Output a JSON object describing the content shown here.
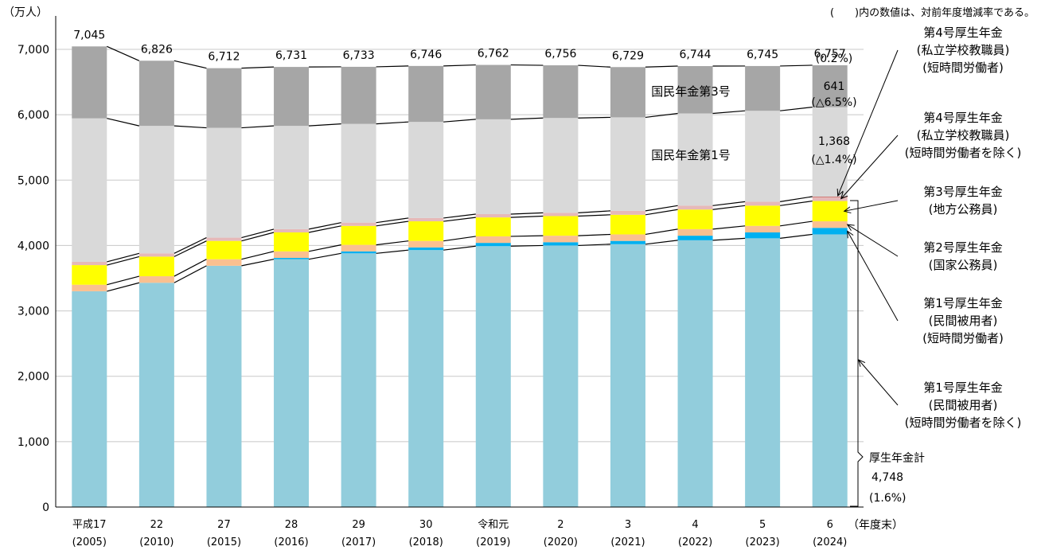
{
  "chart_data": {
    "type": "bar",
    "stacked": true,
    "title": "",
    "ylabel": "（万人）",
    "xlabel": "（年度末）",
    "note": "(　　)内の数値は、対前年度増減率である。",
    "ylim": [
      0,
      7000
    ],
    "yticks": [
      "0",
      "1,000",
      "2,000",
      "3,000",
      "4,000",
      "5,000",
      "6,000",
      "7,000"
    ],
    "categories": [
      {
        "top": "平成17",
        "bottom": "(2005)"
      },
      {
        "top": "22",
        "bottom": "(2010)"
      },
      {
        "top": "27",
        "bottom": "(2015)"
      },
      {
        "top": "28",
        "bottom": "(2016)"
      },
      {
        "top": "29",
        "bottom": "(2017)"
      },
      {
        "top": "30",
        "bottom": "(2018)"
      },
      {
        "top": "令和元",
        "bottom": "(2019)"
      },
      {
        "top": "2",
        "bottom": "(2020)"
      },
      {
        "top": "3",
        "bottom": "(2021)"
      },
      {
        "top": "4",
        "bottom": "(2022)"
      },
      {
        "top": "5",
        "bottom": "(2023)"
      },
      {
        "top": "6",
        "bottom": "(2024)"
      }
    ],
    "totals": [
      "7,045",
      "6,826",
      "6,712",
      "6,731",
      "6,733",
      "6,746",
      "6,762",
      "6,756",
      "6,729",
      "6,744",
      "6,745",
      "6,757"
    ],
    "series": [
      {
        "name": "第1号厚生年金 (民間被用者) (短時間労働者を除く)",
        "color": "#92CDDC",
        "values": [
          3300,
          3430,
          3690,
          3790,
          3880,
          3930,
          3990,
          4000,
          4020,
          4080,
          4110,
          4170
        ]
      },
      {
        "name": "第1号厚生年金 (民間被用者) (短時間労働者)",
        "color": "#00B0F0",
        "values": [
          0,
          0,
          0,
          20,
          30,
          40,
          50,
          50,
          50,
          70,
          90,
          100
        ]
      },
      {
        "name": "第2号厚生年金 (国家公務員)",
        "color": "#FAC090",
        "values": [
          100,
          100,
          100,
          100,
          100,
          100,
          100,
          100,
          100,
          100,
          100,
          100
        ]
      },
      {
        "name": "第3号厚生年金 (地方公務員)",
        "color": "#FFFF00",
        "values": [
          300,
          300,
          280,
          290,
          290,
          300,
          290,
          300,
          300,
          300,
          310,
          310
        ]
      },
      {
        "name": "第4号厚生年金 (私立学校教職員) (短時間労働者を除く)",
        "color": "#E6B9B8",
        "values": [
          50,
          50,
          50,
          50,
          50,
          50,
          50,
          50,
          60,
          60,
          60,
          60
        ]
      },
      {
        "name": "第4号厚生年金 (私立学校教職員) (短時間労働者)",
        "color": "#C0504D",
        "values": [
          0,
          0,
          0,
          0,
          0,
          0,
          0,
          0,
          0,
          0,
          0,
          8
        ]
      },
      {
        "name": "国民年金第1号",
        "color": "#D9D9D9",
        "values": [
          2195,
          1950,
          1680,
          1580,
          1510,
          1470,
          1450,
          1450,
          1430,
          1410,
          1390,
          1368
        ]
      },
      {
        "name": "国民年金第3号",
        "color": "#A6A6A6",
        "values": [
          1100,
          996,
          912,
          901,
          873,
          856,
          832,
          806,
          769,
          724,
          685,
          641
        ]
      }
    ],
    "inner_labels": {
      "nenkin3": "国民年金第3号",
      "nenkin1": "国民年金第1号"
    },
    "annotations": {
      "total_growth": "(0.2%)",
      "n3_value": "641",
      "n3_growth": "(△6.5%)",
      "n1_value": "1,368",
      "n1_growth": "(△1.4%)",
      "kosei_label": "厚生年金計",
      "kosei_value": "4,748",
      "kosei_growth": "(1.6%)"
    },
    "callouts": [
      {
        "lines": [
          "第4号厚生年金",
          "(私立学校教職員)",
          "(短時間労働者)"
        ]
      },
      {
        "lines": [
          "第4号厚生年金",
          "(私立学校教職員)",
          "(短時間労働者を除く)"
        ]
      },
      {
        "lines": [
          "第3号厚生年金",
          "(地方公務員)"
        ]
      },
      {
        "lines": [
          "第2号厚生年金",
          "(国家公務員)"
        ]
      },
      {
        "lines": [
          "第1号厚生年金",
          "(民間被用者)",
          "(短時間労働者)"
        ]
      },
      {
        "lines": [
          "第1号厚生年金",
          "(民間被用者)",
          "(短時間労働者を除く)"
        ]
      }
    ],
    "grid": true,
    "legend": "right callouts"
  }
}
